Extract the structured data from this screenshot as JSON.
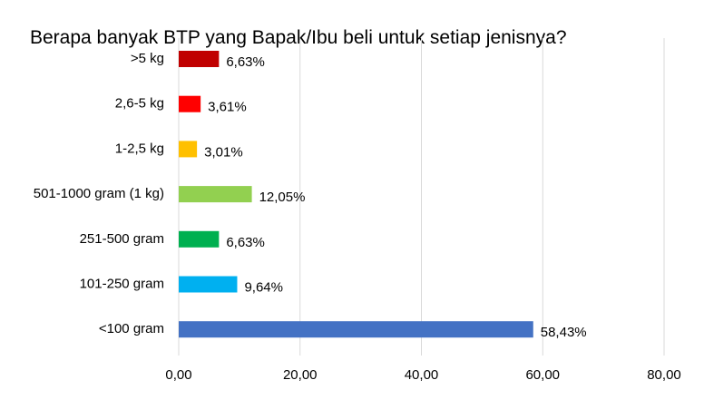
{
  "chart_data": {
    "type": "bar",
    "orientation": "horizontal",
    "title": "Berapa banyak BTP yang Bapak/Ibu beli untuk setiap jenisnya?",
    "categories": [
      ">5 kg",
      "2,6-5 kg",
      "1-2,5 kg",
      "501-1000 gram (1 kg)",
      "251-500 gram",
      "101-250 gram",
      "<100 gram"
    ],
    "values": [
      6.63,
      3.61,
      3.01,
      12.05,
      6.63,
      9.64,
      58.43
    ],
    "data_labels": [
      "6,63%",
      "3,61%",
      "3,01%",
      "12,05%",
      "6,63%",
      "9,64%",
      "58,43%"
    ],
    "colors": [
      "#c00000",
      "#ff0000",
      "#ffc000",
      "#92d050",
      "#00b050",
      "#00b0f0",
      "#4472c4"
    ],
    "xlim": [
      0,
      80
    ],
    "x_ticks": [
      0,
      20,
      40,
      60,
      80
    ],
    "x_tick_labels": [
      "0,00",
      "20,00",
      "40,00",
      "60,00",
      "80,00"
    ],
    "grid": "vertical",
    "legend": "none"
  }
}
